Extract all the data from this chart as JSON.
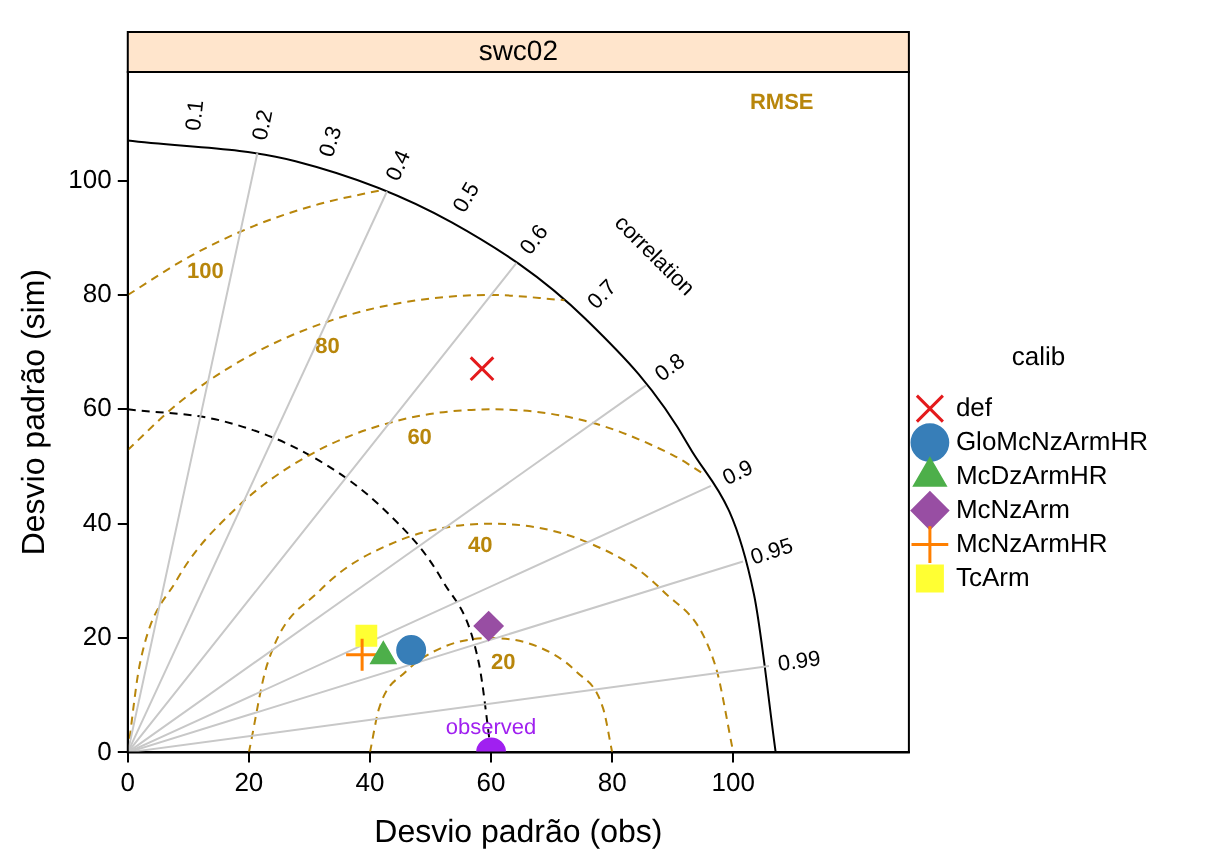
{
  "chart_data": {
    "type": "scatter",
    "title": "swc02",
    "xlabel": "Desvio padrão (obs)",
    "ylabel": "Desvio padrão (sim)",
    "legend_title": "calib",
    "legend": "right",
    "grid": false,
    "xlim": [
      0,
      129
    ],
    "ylim": [
      0,
      119
    ],
    "xticks": [
      0,
      20,
      40,
      60,
      80,
      100
    ],
    "yticks": [
      0,
      20,
      40,
      60,
      80,
      100
    ],
    "series": [
      {
        "type": "line",
        "color": "#c8c8c8",
        "marker": "none",
        "line_style": "solid",
        "x": [
          0,
          21.4
        ],
        "values": [
          0,
          104.8
        ]
      },
      {
        "type": "line",
        "color": "#c8c8c8",
        "marker": "none",
        "line_style": "solid",
        "x": [
          0,
          42.8
        ],
        "values": [
          0,
          98.1
        ]
      },
      {
        "type": "line",
        "color": "#c8c8c8",
        "marker": "none",
        "line_style": "solid",
        "x": [
          0,
          64.2
        ],
        "values": [
          0,
          85.6
        ]
      },
      {
        "type": "line",
        "color": "#c8c8c8",
        "marker": "none",
        "line_style": "solid",
        "x": [
          0,
          85.6
        ],
        "values": [
          0,
          64.2
        ]
      },
      {
        "type": "line",
        "color": "#c8c8c8",
        "marker": "none",
        "line_style": "solid",
        "x": [
          0,
          96.3
        ],
        "values": [
          0,
          46.6
        ]
      },
      {
        "type": "line",
        "color": "#c8c8c8",
        "marker": "none",
        "line_style": "solid",
        "x": [
          0,
          101.6
        ],
        "values": [
          0,
          33.4
        ]
      },
      {
        "type": "line",
        "color": "#c8c8c8",
        "marker": "none",
        "line_style": "solid",
        "x": [
          0,
          105.9
        ],
        "values": [
          0,
          15.1
        ]
      },
      {
        "type": "line",
        "color": "#b8860b",
        "marker": "none",
        "line_style": "dashed",
        "x": [
          40,
          41.5,
          45.9,
          52.3,
          60,
          67.7,
          74.1,
          78.5,
          80
        ],
        "values": [
          0,
          7.7,
          14.1,
          18.5,
          20,
          18.5,
          14.1,
          7.7,
          0
        ]
      },
      {
        "type": "line",
        "color": "#b8860b",
        "marker": "none",
        "line_style": "dashed",
        "x": [
          20,
          23,
          31.7,
          44.7,
          60,
          75.3,
          88.3,
          97,
          100
        ],
        "values": [
          0,
          15.3,
          28.3,
          37,
          40,
          37,
          28.3,
          15.3,
          0
        ]
      },
      {
        "type": "line",
        "color": "#b8860b",
        "marker": "none",
        "line_style": "dashed",
        "x": [
          0,
          2,
          8,
          17.6,
          30,
          44.5,
          60,
          75.5,
          90,
          95.4
        ],
        "values": [
          0,
          15.5,
          30,
          42.4,
          52,
          58,
          60,
          58,
          52,
          48.5
        ]
      },
      {
        "type": "line",
        "color": "#b8860b",
        "marker": "none",
        "line_style": "dashed",
        "x": [
          0,
          8.6,
          20,
          32.6,
          46.1,
          60,
          72.1
        ],
        "values": [
          52.9,
          61.3,
          69.3,
          75.2,
          78.8,
          80,
          79.1
        ]
      },
      {
        "type": "line",
        "color": "#b8860b",
        "marker": "none",
        "line_style": "dashed",
        "x": [
          0,
          10,
          20.9,
          31.6,
          42.1
        ],
        "values": [
          80,
          86.6,
          92.1,
          95.9,
          98.4
        ]
      },
      {
        "type": "line",
        "color": "#000000",
        "marker": "none",
        "line_style": "dashed",
        "x": [
          0,
          15.5,
          30,
          42.4,
          52,
          58,
          60
        ],
        "values": [
          60,
          58,
          52,
          42.4,
          30,
          15.5,
          0
        ]
      },
      {
        "type": "line",
        "color": "#000000",
        "marker": "none",
        "line_style": "solid",
        "x": [
          0,
          27.7,
          53.5,
          75.7,
          92.7,
          103.4,
          107
        ],
        "values": [
          107,
          103.4,
          92.7,
          75.7,
          53.5,
          27.7,
          0
        ]
      },
      {
        "name": "def",
        "color": "#e41a1c",
        "marker": "cross",
        "x": [
          58.5
        ],
        "values": [
          67.1
        ]
      },
      {
        "name": "GloMcNzArmHR",
        "color": "#377eb8",
        "marker": "circle",
        "x": [
          46.8
        ],
        "values": [
          17.9
        ]
      },
      {
        "name": "McDzArmHR",
        "color": "#4daf4a",
        "marker": "triangle",
        "x": [
          42.2
        ],
        "values": [
          16.8
        ]
      },
      {
        "name": "McNzArm",
        "color": "#984ea3",
        "marker": "diamond",
        "x": [
          59.6
        ],
        "values": [
          22.1
        ]
      },
      {
        "name": "McNzArmHR",
        "color": "#ff7f00",
        "marker": "plus",
        "x": [
          38.7
        ],
        "values": [
          17.1
        ]
      },
      {
        "name": "TcArm",
        "color": "#ffff33",
        "marker": "square",
        "x": [
          39.4
        ],
        "values": [
          20.4
        ]
      },
      {
        "color": "#a020f0",
        "marker": "circle",
        "x": [
          60
        ],
        "values": [
          0
        ]
      }
    ],
    "annotations": [
      "0.1",
      "0.2",
      "0.3",
      "0.4",
      "0.5",
      "0.6",
      "0.7",
      "0.8",
      "0.9",
      "0.95",
      "0.99",
      "20",
      "40",
      "60",
      "80",
      "100",
      "RMSE",
      "correlation",
      "observed"
    ]
  }
}
